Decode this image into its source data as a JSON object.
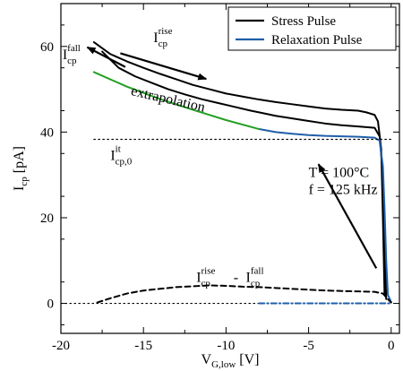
{
  "chart_data": {
    "type": "line",
    "xlabel": "V",
    "xlabel_sub": "G,low",
    "xlabel_unit": " [V]",
    "ylabel": "I",
    "ylabel_sub": "cp",
    "ylabel_unit": " [pA]",
    "xlim": [
      -20,
      0.5
    ],
    "ylim": [
      -7,
      70
    ],
    "x_ticks": [
      -20,
      -15,
      -10,
      -5,
      0
    ],
    "y_ticks": [
      0,
      20,
      40,
      60
    ],
    "x_tick_labels": [
      "-20",
      "-15",
      "-10",
      "-5",
      "0"
    ],
    "y_tick_labels": [
      "0",
      "20",
      "40",
      "60"
    ],
    "legend": {
      "position": "top-right",
      "entries": [
        {
          "label": "Stress Pulse",
          "color": "#000000"
        },
        {
          "label": "Relaxation Pulse",
          "color": "#1f5fa8"
        }
      ]
    },
    "series": [
      {
        "name": "Stress Pulse",
        "role": "I_cp rise",
        "color": "#000000",
        "style": "solid",
        "x": [
          -18.0,
          -17.0,
          -16.0,
          -15.0,
          -14.0,
          -13.0,
          -12.0,
          -11.0,
          -10.0,
          -9.0,
          -8.0,
          -7.0,
          -6.0,
          -5.0,
          -4.0,
          -3.0,
          -2.0,
          -1.5,
          -1.0,
          -0.8,
          -0.6,
          -0.5,
          -0.4
        ],
        "y": [
          61.0,
          58.2,
          56.5,
          55.0,
          53.6,
          52.3,
          51.0,
          50.0,
          49.0,
          48.3,
          47.6,
          47.0,
          46.5,
          46.0,
          45.5,
          45.2,
          45.0,
          44.6,
          44.0,
          42.5,
          36.0,
          20.0,
          2.0
        ]
      },
      {
        "name": "Stress Pulse",
        "role": "I_cp fall",
        "color": "#000000",
        "style": "solid",
        "x": [
          -17.5,
          -16.5,
          -15.5,
          -14.5,
          -13.5,
          -12.5,
          -11.5,
          -10.5,
          -9.5,
          -8.5,
          -8.0,
          -7.0,
          -6.0,
          -5.0,
          -4.0,
          -3.0,
          -2.0,
          -1.0,
          -0.7,
          -0.5,
          -0.4,
          -0.3
        ],
        "y": [
          58.8,
          55.0,
          53.0,
          51.5,
          50.0,
          48.8,
          47.7,
          46.8,
          45.9,
          45.0,
          44.6,
          43.8,
          43.2,
          42.6,
          42.0,
          41.6,
          41.3,
          41.0,
          39.0,
          30.0,
          15.0,
          1.0
        ]
      },
      {
        "name": "Relaxation Pulse",
        "role": "I_cp",
        "color": "#1f5fa8",
        "style": "solid",
        "x": [
          -8.0,
          -7.0,
          -6.0,
          -5.0,
          -4.0,
          -3.0,
          -2.0,
          -1.0,
          -0.7,
          -0.5,
          -0.4,
          -0.3,
          -0.2,
          0.0
        ],
        "y": [
          40.7,
          40.0,
          39.6,
          39.3,
          39.1,
          39.0,
          38.9,
          38.7,
          38.0,
          32.0,
          22.0,
          10.0,
          2.0,
          0.3
        ]
      },
      {
        "name": "extrapolation",
        "color": "#22a022",
        "style": "solid",
        "x": [
          -18.0,
          -16.0,
          -14.0,
          -12.0,
          -10.0,
          -8.0
        ],
        "y": [
          54.0,
          50.6,
          47.7,
          45.2,
          42.8,
          40.7
        ]
      },
      {
        "name": "I_cp,0^it",
        "color": "#000000",
        "style": "dotted",
        "x": [
          -18.0,
          0.0
        ],
        "y": [
          38.3,
          38.3
        ]
      },
      {
        "name": "I_cp^rise - I_cp^fall",
        "color": "#000000",
        "style": "dashed",
        "x": [
          -17.8,
          -17.0,
          -16.0,
          -15.0,
          -14.0,
          -13.0,
          -12.0,
          -11.0,
          -10.0,
          -9.0,
          -8.0,
          -7.0,
          -6.0,
          -5.0,
          -4.0,
          -3.0,
          -2.0,
          -1.0,
          -0.5,
          -0.2,
          0.0
        ],
        "y": [
          0.2,
          1.2,
          2.3,
          3.0,
          3.4,
          3.8,
          4.0,
          4.2,
          4.1,
          3.9,
          3.8,
          3.6,
          3.4,
          3.2,
          3.0,
          2.9,
          2.8,
          2.7,
          2.3,
          1.0,
          0.2
        ]
      },
      {
        "name": "zero (stress)",
        "color": "#000000",
        "style": "dotted",
        "x": [
          -20.0,
          -8.0
        ],
        "y": [
          0.0,
          0.0
        ]
      },
      {
        "name": "zero (relaxation)",
        "color": "#1f5fa8",
        "style": "dashdot",
        "x": [
          -8.0,
          0.0
        ],
        "y": [
          0.0,
          0.0
        ]
      }
    ],
    "annotations": [
      {
        "id": "icp_fall",
        "main": "I",
        "sub": "cp",
        "sup": "fall",
        "x": -19.9,
        "y": 57.0
      },
      {
        "id": "icp_rise",
        "main": "I",
        "sub": "cp",
        "sup": "rise",
        "x": -14.4,
        "y": 61.0
      },
      {
        "id": "extrapolation",
        "text": "extrapolation",
        "x": -15.8,
        "y": 48.7,
        "rotate": 13
      },
      {
        "id": "icp0_it",
        "main": "I",
        "sub": "cp,0",
        "sup": "it",
        "x": -17.0,
        "y": 33.5
      },
      {
        "id": "temperature",
        "text": "T = 100°C",
        "x": -5.0,
        "y": 29.5
      },
      {
        "id": "frequency",
        "text": "f  = 125 kHz",
        "x": -5.0,
        "y": 25.5
      },
      {
        "id": "diff_rise",
        "main": "I",
        "sub": "cp",
        "sup": "rise",
        "x": -11.8,
        "y": 5.0
      },
      {
        "id": "diff_sep",
        "text": "-",
        "x": -9.55,
        "y": 5.0
      },
      {
        "id": "diff_fall",
        "main": "I",
        "sub": "cp",
        "sup": "fall",
        "x": -8.8,
        "y": 5.0
      }
    ]
  }
}
